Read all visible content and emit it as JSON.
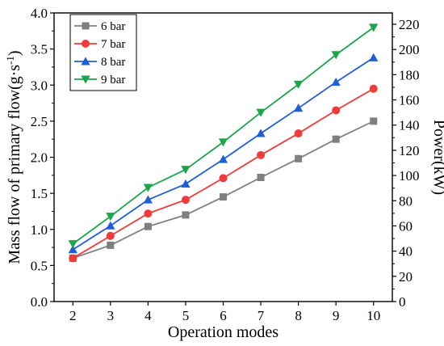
{
  "chart_data": {
    "type": "line",
    "xlabel": "Operation modes",
    "ylabel_left": "Mass flow of primary flow(g·s",
    "ylabel_left_sup": "-1",
    "ylabel_left_close": ")",
    "ylabel_right": "Power(kW)",
    "x": [
      2,
      3,
      4,
      5,
      6,
      7,
      8,
      9,
      10
    ],
    "xlim": [
      1.5,
      10.5
    ],
    "xticks": [
      "2",
      "3",
      "4",
      "5",
      "6",
      "7",
      "8",
      "9",
      "10"
    ],
    "ylim": [
      0,
      4.0
    ],
    "yticks": [
      "0.0",
      "0.5",
      "1.0",
      "1.5",
      "2.0",
      "2.5",
      "3.0",
      "3.5",
      "4.0"
    ],
    "y2lim": [
      0,
      229
    ],
    "y2ticks": [
      "0",
      "20",
      "40",
      "60",
      "80",
      "100",
      "120",
      "140",
      "160",
      "180",
      "200",
      "220"
    ],
    "legend_position": "top-left",
    "grid": false,
    "series": [
      {
        "name": "6 bar",
        "color": "#7f7f7f",
        "marker": "square",
        "values": [
          0.6,
          0.78,
          1.04,
          1.2,
          1.45,
          1.72,
          1.98,
          2.25,
          2.5
        ]
      },
      {
        "name": "7 bar",
        "color": "#f03b3b",
        "marker": "circle",
        "values": [
          0.6,
          0.91,
          1.22,
          1.41,
          1.71,
          2.03,
          2.33,
          2.65,
          2.95
        ]
      },
      {
        "name": "8 bar",
        "color": "#1f5fd6",
        "marker": "triangle-up",
        "values": [
          0.72,
          1.05,
          1.41,
          1.63,
          1.97,
          2.33,
          2.68,
          3.04,
          3.38
        ]
      },
      {
        "name": "9 bar",
        "color": "#1aa64a",
        "marker": "triangle-down",
        "values": [
          0.8,
          1.18,
          1.58,
          1.83,
          2.21,
          2.62,
          3.01,
          3.42,
          3.8
        ]
      }
    ]
  }
}
